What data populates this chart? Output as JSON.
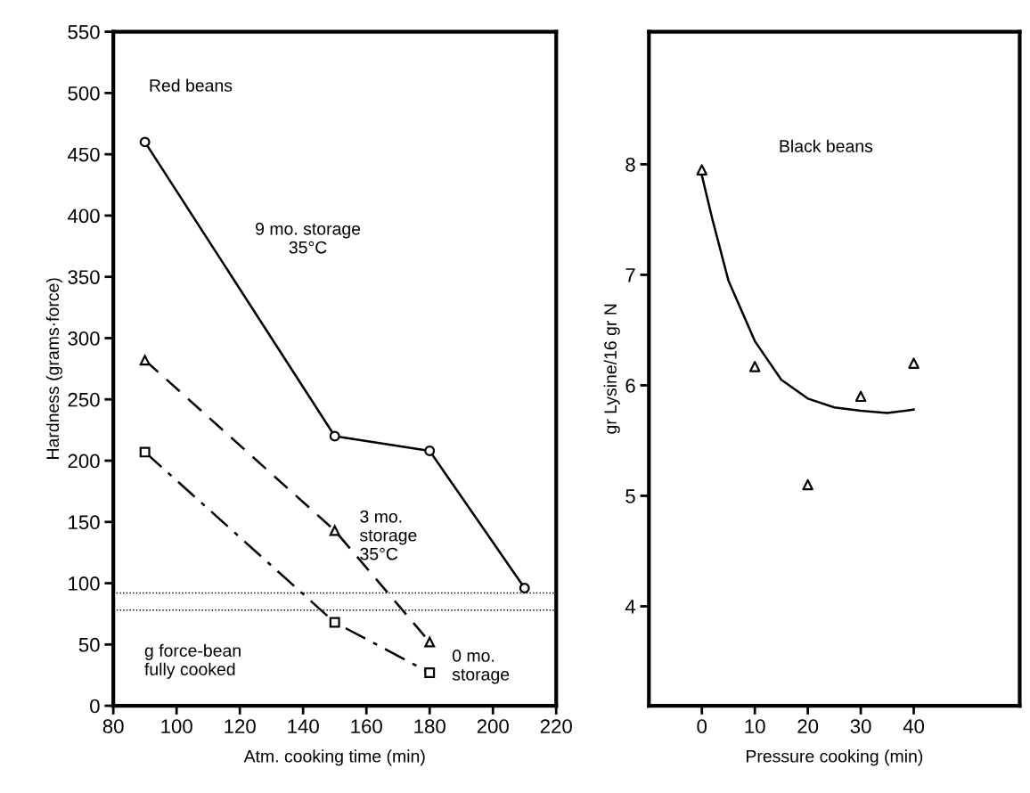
{
  "chart_data": [
    {
      "type": "line",
      "xlabel": "Atm. cooking time (min)",
      "ylabel": "Hardness (grams·force)",
      "xlim": [
        80,
        220
      ],
      "xticks": [
        80,
        100,
        120,
        140,
        160,
        180,
        200,
        220
      ],
      "ylim": [
        0,
        550
      ],
      "yticks": [
        0,
        50,
        100,
        150,
        200,
        250,
        300,
        350,
        400,
        450,
        500,
        550
      ],
      "series": [
        {
          "name": "9 mo. storage\n35°C",
          "color": "#000000",
          "marker": "circle",
          "line_style": "solid",
          "x": [
            90,
            150,
            180,
            210
          ],
          "values": [
            460,
            220,
            208,
            96
          ]
        },
        {
          "name": "3 mo.\nstorage\n35°C",
          "color": "#000000",
          "marker": "triangle",
          "line_style": "dashed",
          "x": [
            90,
            150,
            180
          ],
          "values": [
            282,
            143,
            52
          ]
        },
        {
          "name": "0 mo.\nstorage",
          "color": "#000000",
          "marker": "square",
          "line_style": "dashdot",
          "x": [
            90,
            150,
            180
          ],
          "values": [
            207,
            68,
            27
          ]
        }
      ],
      "bands": [
        {
          "axis": "y",
          "from": 78,
          "to": 92,
          "color": "#000000"
        }
      ],
      "annotations": [
        "Red beans",
        "g force-bean\nfully cooked"
      ],
      "grid": false,
      "legend": false
    },
    {
      "type": "scatter",
      "xlabel": "Pressure cooking (min)",
      "ylabel": "gr Lysine/16 gr N",
      "xlim": [
        -10,
        60
      ],
      "xticks": [
        0,
        10,
        20,
        30,
        40
      ],
      "ylim": [
        3.1,
        9.2
      ],
      "yticks": [
        4,
        5,
        6,
        7,
        8
      ],
      "series": [
        {
          "color": "#000000",
          "marker": "triangle",
          "x": [
            0,
            10,
            20,
            30,
            40
          ],
          "values": [
            7.95,
            6.17,
            5.1,
            5.9,
            6.2
          ]
        },
        {
          "type": "line",
          "color": "#000000",
          "marker": "none",
          "line_style": "solid",
          "x": [
            0,
            2,
            5,
            10,
            15,
            20,
            25,
            30,
            35,
            40
          ],
          "values": [
            7.9,
            7.5,
            6.95,
            6.4,
            6.05,
            5.88,
            5.8,
            5.77,
            5.75,
            5.78
          ]
        }
      ],
      "annotations": [
        "Black beans"
      ],
      "grid": false,
      "legend": false
    }
  ]
}
